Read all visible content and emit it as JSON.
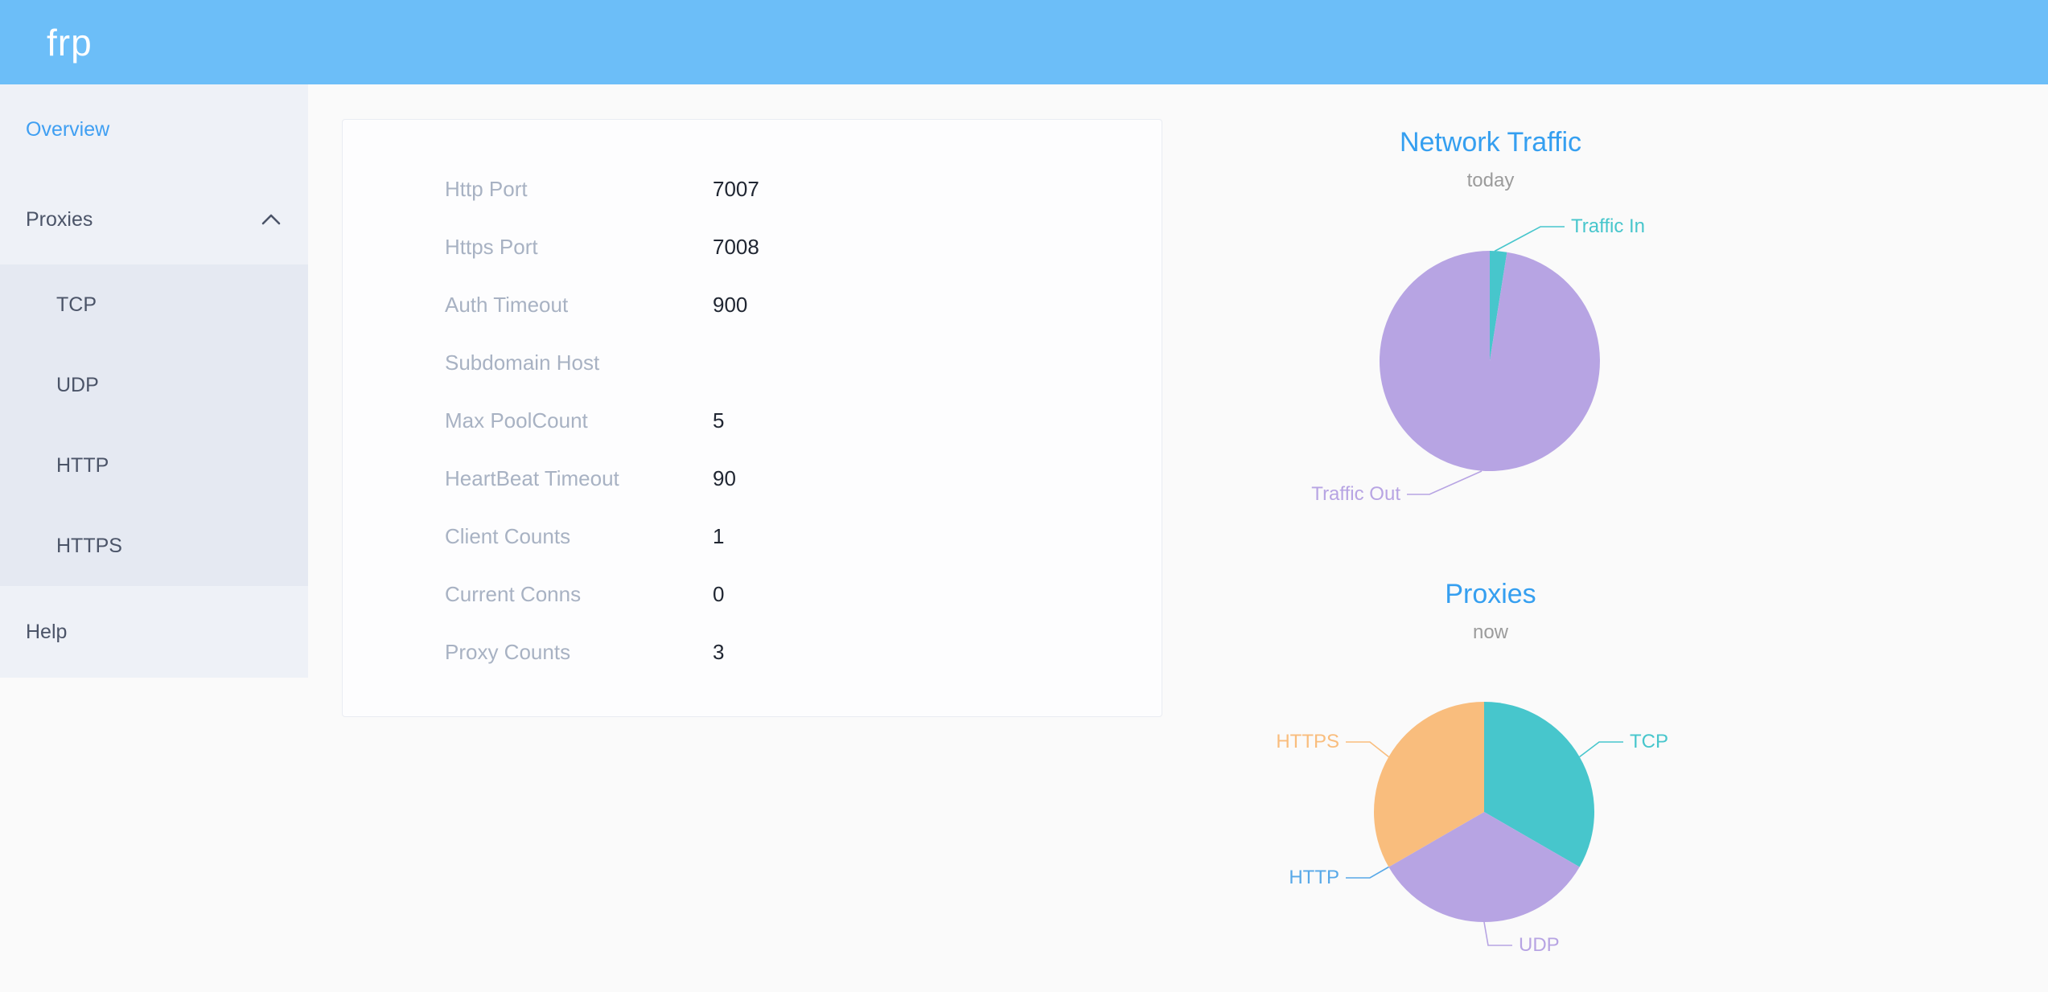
{
  "header": {
    "logo": "frp",
    "bg_color": "#6cbef8"
  },
  "sidebar": {
    "bg_color": "#eef1f7",
    "submenu_bg_color": "#e5e9f2",
    "text_color": "#4b5468",
    "active_color": "#3f9ff2",
    "items": [
      {
        "label": "Overview",
        "active": true
      },
      {
        "label": "Proxies",
        "expanded": true,
        "children": [
          "TCP",
          "UDP",
          "HTTP",
          "HTTPS"
        ]
      },
      {
        "label": "Help"
      }
    ]
  },
  "server_info": {
    "label_color": "#a8b2c3",
    "value_color": "#202632",
    "rows": [
      {
        "label": "Http Port",
        "value": "7007"
      },
      {
        "label": "Https Port",
        "value": "7008"
      },
      {
        "label": "Auth Timeout",
        "value": "900"
      },
      {
        "label": "Subdomain Host",
        "value": ""
      },
      {
        "label": "Max PoolCount",
        "value": "5"
      },
      {
        "label": "HeartBeat Timeout",
        "value": "90"
      },
      {
        "label": "Client Counts",
        "value": "1"
      },
      {
        "label": "Current Conns",
        "value": "0"
      },
      {
        "label": "Proxy Counts",
        "value": "3"
      }
    ]
  },
  "chart_data": [
    {
      "type": "pie",
      "title": "Network Traffic",
      "subtitle": "today",
      "title_color": "#359ff0",
      "subtitle_color": "#9b9b9b",
      "legend_position": "callout-labels",
      "values_are_percent_estimates": true,
      "series": [
        {
          "name": "Traffic In",
          "value": 2.5,
          "color": "#47c6cc"
        },
        {
          "name": "Traffic Out",
          "value": 97.5,
          "color": "#b7a4e3"
        }
      ]
    },
    {
      "type": "pie",
      "title": "Proxies",
      "subtitle": "now",
      "title_color": "#359ff0",
      "subtitle_color": "#9b9b9b",
      "legend_position": "callout-labels",
      "series": [
        {
          "name": "TCP",
          "value": 1,
          "color": "#47c6cc"
        },
        {
          "name": "UDP",
          "value": 1,
          "color": "#b7a4e3"
        },
        {
          "name": "HTTP",
          "value": 0,
          "color": "#57a8e8"
        },
        {
          "name": "HTTPS",
          "value": 1,
          "color": "#f9bd7d"
        }
      ]
    }
  ]
}
